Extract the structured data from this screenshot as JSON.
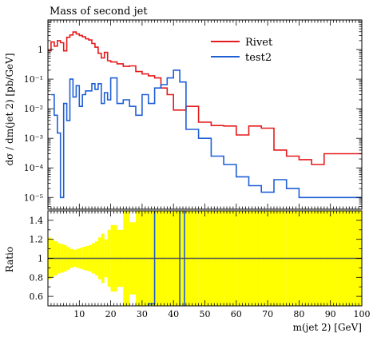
{
  "chart_data": [
    {
      "type": "line",
      "panel": "main",
      "title": "Mass of second jet",
      "ylabel": "dσ / dm(jet 2) [pb/GeV]",
      "yscale": "log",
      "ylim": [
        4e-06,
        10
      ],
      "xlim": [
        0,
        100
      ],
      "yticks": [
        {
          "value": 1,
          "label": "1"
        },
        {
          "value": 0.1,
          "label": "10⁻¹"
        },
        {
          "value": 0.01,
          "label": "10⁻²"
        },
        {
          "value": 0.001,
          "label": "10⁻³"
        },
        {
          "value": 0.0001,
          "label": "10⁻⁴"
        },
        {
          "value": 1e-05,
          "label": "10⁻⁵"
        }
      ],
      "legend_position": "top-right",
      "series": [
        {
          "name": "Rivet",
          "color": "#e41a1c",
          "edges": [
            0,
            1,
            2,
            3,
            4,
            5,
            6,
            7,
            8,
            9,
            10,
            11,
            12,
            13,
            14,
            15,
            16,
            17,
            18,
            19,
            20,
            22,
            24,
            26,
            28,
            30,
            32,
            34,
            36,
            38,
            40,
            44,
            48,
            52,
            56,
            60,
            64,
            68,
            72,
            76,
            80,
            84,
            88,
            92,
            100
          ],
          "values": [
            0.9,
            1.8,
            1.3,
            2.0,
            1.7,
            0.9,
            2.6,
            3.1,
            3.9,
            3.4,
            3.0,
            2.7,
            2.3,
            2.1,
            1.6,
            1.2,
            0.75,
            0.52,
            0.8,
            0.42,
            0.38,
            0.33,
            0.27,
            0.28,
            0.18,
            0.15,
            0.13,
            0.11,
            0.05,
            0.03,
            0.009,
            0.012,
            0.0035,
            0.0027,
            0.0026,
            0.0013,
            0.0026,
            0.0022,
            0.0004,
            0.00025,
            0.00019,
            0.00013,
            0.0003,
            0.0003
          ]
        },
        {
          "name": "test2",
          "color": "#1f5fd6",
          "edges": [
            1,
            2,
            3,
            4,
            5,
            6,
            7,
            8,
            9,
            10,
            11,
            12,
            13,
            14,
            15,
            16,
            17,
            18,
            19,
            20,
            22,
            24,
            26,
            28,
            30,
            32,
            34,
            36,
            38,
            40,
            42,
            44,
            48,
            52,
            56,
            60,
            64,
            68,
            72,
            76,
            80,
            84,
            88,
            92,
            100
          ],
          "values": [
            0.03,
            0.006,
            0.0015,
            1e-05,
            0.015,
            0.004,
            0.1,
            0.025,
            0.06,
            0.012,
            0.03,
            0.04,
            0.04,
            0.07,
            0.045,
            0.07,
            0.015,
            0.035,
            0.02,
            0.11,
            0.015,
            0.02,
            0.012,
            0.006,
            0.03,
            0.015,
            0.05,
            0.065,
            0.11,
            0.2,
            0.08,
            0.002,
            0.001,
            0.00025,
            0.00013,
            5e-05,
            2.5e-05,
            1.5e-05,
            4e-05,
            2e-05,
            1e-05,
            1e-05,
            1e-05,
            1e-05
          ]
        }
      ]
    },
    {
      "type": "line",
      "panel": "ratio",
      "ylabel": "Ratio",
      "ylim": [
        0.5,
        1.5
      ],
      "xlim": [
        0,
        100
      ],
      "xlabel": "m(jet 2) [GeV]",
      "yticks": [
        {
          "value": 1.4,
          "label": "1.4"
        },
        {
          "value": 1.2,
          "label": "1.2"
        },
        {
          "value": 1.0,
          "label": "1"
        },
        {
          "value": 0.8,
          "label": "0.8"
        },
        {
          "value": 0.6,
          "label": "0.6"
        }
      ],
      "xticks": [
        {
          "value": 10,
          "label": "10"
        },
        {
          "value": 20,
          "label": "20"
        },
        {
          "value": 30,
          "label": "30"
        },
        {
          "value": 40,
          "label": "40"
        },
        {
          "value": 50,
          "label": "50"
        },
        {
          "value": 60,
          "label": "60"
        },
        {
          "value": 70,
          "label": "70"
        },
        {
          "value": 80,
          "label": "80"
        },
        {
          "value": 90,
          "label": "90"
        },
        {
          "value": 100,
          "label": "100"
        }
      ],
      "band_color": "#ffff00",
      "band": {
        "edges": [
          0,
          1,
          2,
          3,
          4,
          5,
          6,
          7,
          8,
          9,
          10,
          11,
          12,
          13,
          14,
          15,
          16,
          17,
          18,
          19,
          20,
          22,
          24,
          26,
          28,
          30,
          32,
          34,
          36,
          38,
          40,
          44,
          48,
          52,
          56,
          60,
          64,
          68,
          72,
          76,
          80,
          84,
          88,
          92,
          100
        ],
        "halfwidth": [
          0.22,
          0.2,
          0.18,
          0.16,
          0.15,
          0.14,
          0.12,
          0.1,
          0.09,
          0.1,
          0.11,
          0.12,
          0.13,
          0.14,
          0.16,
          0.18,
          0.22,
          0.26,
          0.2,
          0.3,
          0.35,
          0.3,
          0.5,
          0.38,
          0.5,
          0.5,
          0.5,
          0.5,
          0.5,
          0.5,
          0.5,
          0.5,
          0.5,
          0.5,
          0.5,
          0.5,
          0.5,
          0.5,
          0.5,
          0.5,
          0.5,
          0.5,
          0.5,
          0.5
        ]
      },
      "series": [
        {
          "name": "test2",
          "color": "#1f5fd6",
          "segments": [
            [
              32,
              0.5,
              32,
              0.52,
              34,
              0.52,
              34,
              1.5
            ],
            [
              42,
              1.5,
              42,
              0.5
            ],
            [
              43.5,
              0.5,
              43.5,
              1.5
            ]
          ]
        },
        {
          "name": "Rivet",
          "color": "#555555",
          "segments": [
            [
              0,
              1,
              100,
              1
            ]
          ]
        }
      ]
    }
  ]
}
